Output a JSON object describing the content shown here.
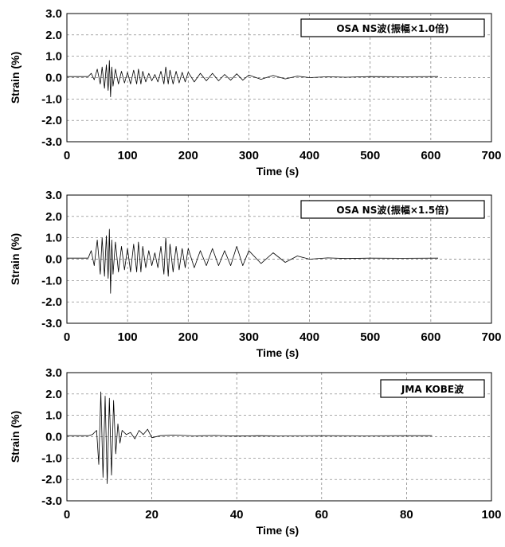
{
  "chart_data": [
    {
      "type": "line",
      "xlabel": "Time (s)",
      "ylabel": "Strain (%)",
      "xlim": [
        0,
        700
      ],
      "ylim": [
        -3.0,
        3.0
      ],
      "xticks": [
        "0",
        "100",
        "200",
        "300",
        "400",
        "500",
        "600",
        "700"
      ],
      "yticks": [
        "3.0",
        "2.0",
        "1.0",
        "0.0",
        "-1.0",
        "-2.0",
        "-3.0"
      ],
      "legend": "OSA NS波(振幅×1.0倍)",
      "legend_position": "top-right",
      "grid": true,
      "series": [
        {
          "x": [
            0,
            35,
            40,
            45,
            50,
            55,
            58,
            62,
            65,
            68,
            70,
            72,
            74,
            76,
            80,
            85,
            90,
            95,
            100,
            105,
            110,
            115,
            118,
            122,
            125,
            130,
            135,
            140,
            145,
            150,
            155,
            160,
            163,
            167,
            170,
            175,
            180,
            185,
            190,
            195,
            200,
            210,
            220,
            230,
            240,
            250,
            260,
            270,
            280,
            290,
            300,
            320,
            340,
            360,
            380,
            400,
            430,
            460,
            500,
            550,
            612
          ],
          "y": [
            0.05,
            0.05,
            0.2,
            -0.1,
            0.4,
            -0.3,
            0.5,
            -0.5,
            0.6,
            -0.6,
            0.8,
            -0.9,
            0.5,
            -0.4,
            0.4,
            -0.3,
            0.3,
            -0.25,
            0.25,
            -0.3,
            0.35,
            -0.3,
            0.4,
            -0.3,
            0.3,
            -0.2,
            0.2,
            -0.15,
            0.15,
            -0.2,
            0.3,
            -0.3,
            0.5,
            -0.3,
            0.35,
            -0.3,
            0.3,
            -0.25,
            0.25,
            -0.2,
            0.25,
            -0.2,
            0.2,
            -0.15,
            0.2,
            -0.15,
            0.15,
            -0.12,
            0.18,
            -0.12,
            0.12,
            -0.08,
            0.1,
            -0.06,
            0.07,
            0.0,
            0.04,
            0.02,
            0.05,
            0.04,
            0.05
          ]
        }
      ]
    },
    {
      "type": "line",
      "xlabel": "Time (s)",
      "ylabel": "Strain (%)",
      "xlim": [
        0,
        700
      ],
      "ylim": [
        -3.0,
        3.0
      ],
      "xticks": [
        "0",
        "100",
        "200",
        "300",
        "400",
        "500",
        "600",
        "700"
      ],
      "yticks": [
        "3.0",
        "2.0",
        "1.0",
        "0.0",
        "-1.0",
        "-2.0",
        "-3.0"
      ],
      "legend": "OSA NS波(振幅×1.5倍)",
      "legend_position": "top-right",
      "grid": true,
      "series": [
        {
          "x": [
            0,
            35,
            40,
            45,
            50,
            55,
            58,
            62,
            65,
            68,
            70,
            72,
            74,
            76,
            80,
            85,
            90,
            95,
            100,
            105,
            110,
            115,
            118,
            122,
            125,
            130,
            135,
            140,
            145,
            150,
            155,
            160,
            163,
            167,
            170,
            175,
            180,
            185,
            190,
            195,
            200,
            210,
            220,
            230,
            240,
            250,
            260,
            270,
            280,
            290,
            300,
            320,
            340,
            360,
            380,
            400,
            430,
            460,
            500,
            550,
            612
          ],
          "y": [
            0.05,
            0.05,
            0.4,
            -0.3,
            0.9,
            -0.7,
            1.0,
            -0.8,
            1.1,
            -0.9,
            1.4,
            -1.6,
            0.9,
            -0.7,
            0.8,
            -0.6,
            0.6,
            -0.5,
            0.5,
            -0.6,
            0.7,
            -0.6,
            0.8,
            -0.6,
            0.6,
            -0.4,
            0.4,
            -0.3,
            0.3,
            -0.4,
            0.6,
            -0.7,
            1.0,
            -0.8,
            0.7,
            -0.6,
            0.6,
            -0.5,
            0.5,
            -0.4,
            0.5,
            -0.4,
            0.4,
            -0.3,
            0.5,
            -0.3,
            0.4,
            -0.3,
            0.6,
            -0.3,
            0.4,
            -0.2,
            0.3,
            -0.15,
            0.15,
            0.0,
            0.06,
            0.03,
            0.05,
            0.04,
            0.05
          ]
        }
      ]
    },
    {
      "type": "line",
      "xlabel": "Time (s)",
      "ylabel": "Strain (%)",
      "xlim": [
        0,
        100
      ],
      "ylim": [
        -3.0,
        3.0
      ],
      "xticks": [
        "0",
        "20",
        "40",
        "60",
        "80",
        "100"
      ],
      "yticks": [
        "3.0",
        "2.0",
        "1.0",
        "0.0",
        "-1.0",
        "-2.0",
        "-3.0"
      ],
      "legend": "JMA KOBE波",
      "legend_position": "top-right",
      "grid": true,
      "series": [
        {
          "x": [
            0,
            5,
            6,
            7,
            7.5,
            8,
            8.5,
            9,
            9.5,
            10,
            10.5,
            11,
            11.5,
            12,
            12.5,
            13,
            14,
            15,
            16,
            17,
            18,
            19,
            20,
            22,
            25,
            30,
            35,
            40,
            45,
            50,
            60,
            70,
            80,
            86
          ],
          "y": [
            0.05,
            0.05,
            0.1,
            0.3,
            -1.3,
            2.1,
            -1.9,
            1.9,
            -2.2,
            1.8,
            -1.8,
            1.7,
            -0.8,
            0.6,
            -0.3,
            0.3,
            0.1,
            0.2,
            -0.1,
            0.3,
            0.1,
            0.35,
            -0.05,
            0.05,
            0.08,
            0.04,
            0.06,
            0.03,
            0.05,
            0.04,
            0.05,
            0.04,
            0.05,
            0.05
          ]
        }
      ]
    }
  ]
}
